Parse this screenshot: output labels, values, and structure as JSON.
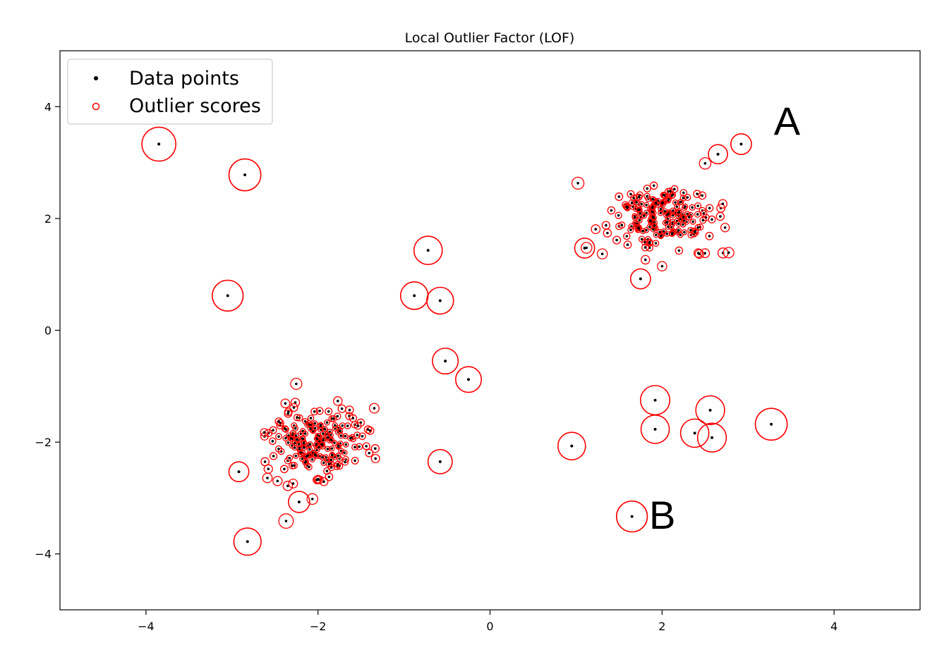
{
  "chart_data": {
    "type": "scatter",
    "title": "Local Outlier Factor (LOF)",
    "xlabel": "",
    "ylabel": "",
    "xlim": [
      -5,
      5
    ],
    "ylim": [
      -5,
      5
    ],
    "xticks": [
      -4,
      -2,
      0,
      2,
      4
    ],
    "yticks": [
      -4,
      -2,
      0,
      2,
      4
    ],
    "xtick_labels": [
      "−4",
      "−2",
      "0",
      "2",
      "4"
    ],
    "ytick_labels": [
      "−4",
      "−2",
      "0",
      "2",
      "4"
    ],
    "grid": false,
    "legend": {
      "placement": "upper left",
      "entries": [
        "Data points",
        "Outlier scores"
      ]
    },
    "colors": {
      "data_points": "#000000",
      "outlier_scores": "#ff0000"
    },
    "clusters": [
      {
        "center": [
          2.0,
          2.0
        ],
        "spread": 0.3,
        "count": 200
      },
      {
        "center": [
          -2.0,
          -2.0
        ],
        "spread": 0.3,
        "count": 200
      }
    ],
    "series": [
      {
        "name": "Data points",
        "kind": "isolated_points",
        "points": [
          [
            -3.85,
            3.33
          ],
          [
            -2.85,
            2.78
          ],
          [
            -3.05,
            0.62
          ],
          [
            -0.72,
            1.43
          ],
          [
            -0.88,
            0.62
          ],
          [
            -0.58,
            0.53
          ],
          [
            -0.52,
            -0.55
          ],
          [
            -0.25,
            -0.88
          ],
          [
            -0.58,
            -2.35
          ],
          [
            -2.22,
            -3.07
          ],
          [
            -2.82,
            -3.78
          ],
          [
            -2.92,
            -2.53
          ],
          [
            0.95,
            -2.07
          ],
          [
            1.92,
            -1.25
          ],
          [
            1.92,
            -1.77
          ],
          [
            2.38,
            -1.84
          ],
          [
            2.56,
            -1.43
          ],
          [
            2.58,
            -1.92
          ],
          [
            3.27,
            -1.68
          ],
          [
            1.65,
            -3.33
          ],
          [
            1.75,
            0.92
          ],
          [
            1.1,
            1.47
          ],
          [
            2.65,
            3.15
          ],
          [
            2.92,
            3.33
          ]
        ]
      },
      {
        "name": "Outlier scores",
        "kind": "lof_scores",
        "scores": [
          1.0,
          0.92,
          0.88,
          0.78,
          0.75,
          0.72,
          0.68,
          0.68,
          0.62,
          0.5,
          0.74,
          0.45,
          0.75,
          0.82,
          0.78,
          0.78,
          0.8,
          0.8,
          0.92,
          0.88,
          0.45,
          0.45,
          0.42,
          0.48
        ]
      }
    ],
    "annotations": [
      {
        "text": "A",
        "x": 3.3,
        "y": 3.5
      },
      {
        "text": "B",
        "x": 1.85,
        "y": -3.55
      }
    ]
  }
}
